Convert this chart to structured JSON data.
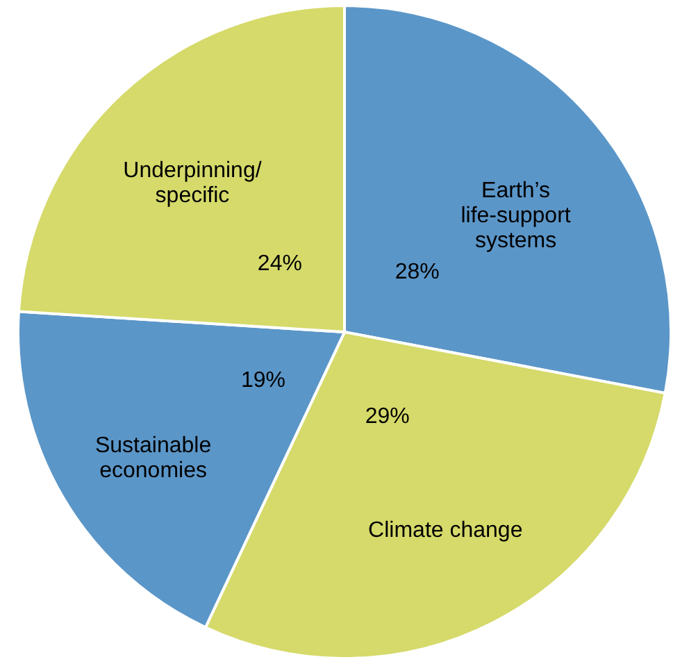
{
  "chart_data": {
    "type": "pie",
    "categories": [
      "Earth’s\nlife-support\nsystems",
      "Climate change",
      "Sustainable\neconomies",
      "Underpinning/\nspecific"
    ],
    "values": [
      28,
      29,
      19,
      24
    ],
    "value_labels": [
      "28%",
      "29%",
      "19%",
      "24%"
    ],
    "colors": [
      "#5b96c8",
      "#d5da6a",
      "#5b96c8",
      "#d5da6a"
    ]
  }
}
